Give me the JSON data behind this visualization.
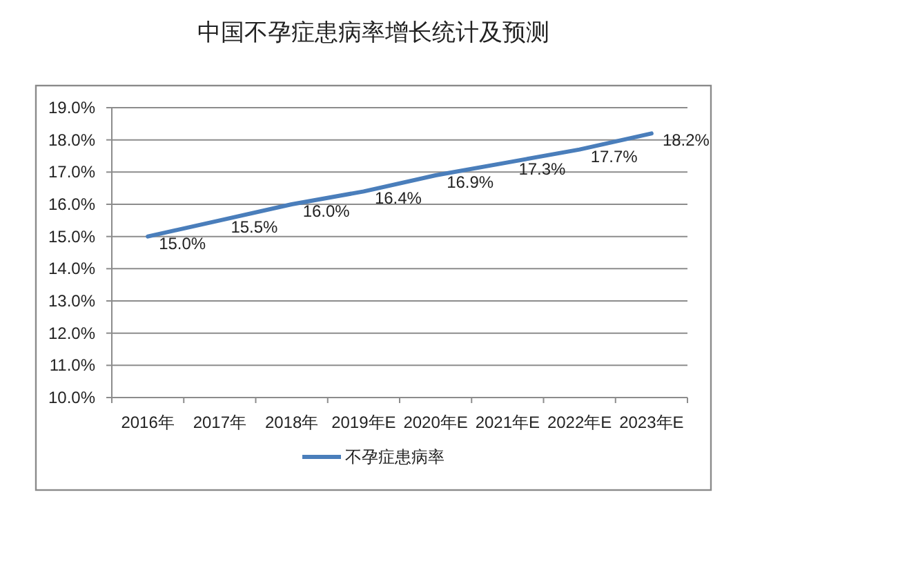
{
  "chart_data": {
    "type": "line",
    "title": "中国不孕症患病率增长统计及预测",
    "categories": [
      "2016年",
      "2017年",
      "2018年",
      "2019年E",
      "2020年E",
      "2021年E",
      "2022年E",
      "2023年E"
    ],
    "series": [
      {
        "name": "不孕症患病率",
        "color": "#4a7ebb",
        "values": [
          15.0,
          15.5,
          16.0,
          16.4,
          16.9,
          17.3,
          17.7,
          18.2
        ],
        "value_labels": [
          "15.0%",
          "15.5%",
          "16.0%",
          "16.4%",
          "16.9%",
          "17.3%",
          "17.7%",
          "18.2%"
        ]
      }
    ],
    "ylim": [
      10,
      19
    ],
    "yticks": [
      {
        "value": 10,
        "label": "10.0%"
      },
      {
        "value": 11,
        "label": "11.0%"
      },
      {
        "value": 12,
        "label": "12.0%"
      },
      {
        "value": 13,
        "label": "13.0%"
      },
      {
        "value": 14,
        "label": "14.0%"
      },
      {
        "value": 15,
        "label": "15.0%"
      },
      {
        "value": 16,
        "label": "16.0%"
      },
      {
        "value": 17,
        "label": "17.0%"
      },
      {
        "value": 18,
        "label": "18.0%"
      },
      {
        "value": 19,
        "label": "19.0%"
      }
    ],
    "grid": "y",
    "legend": "bottom"
  }
}
